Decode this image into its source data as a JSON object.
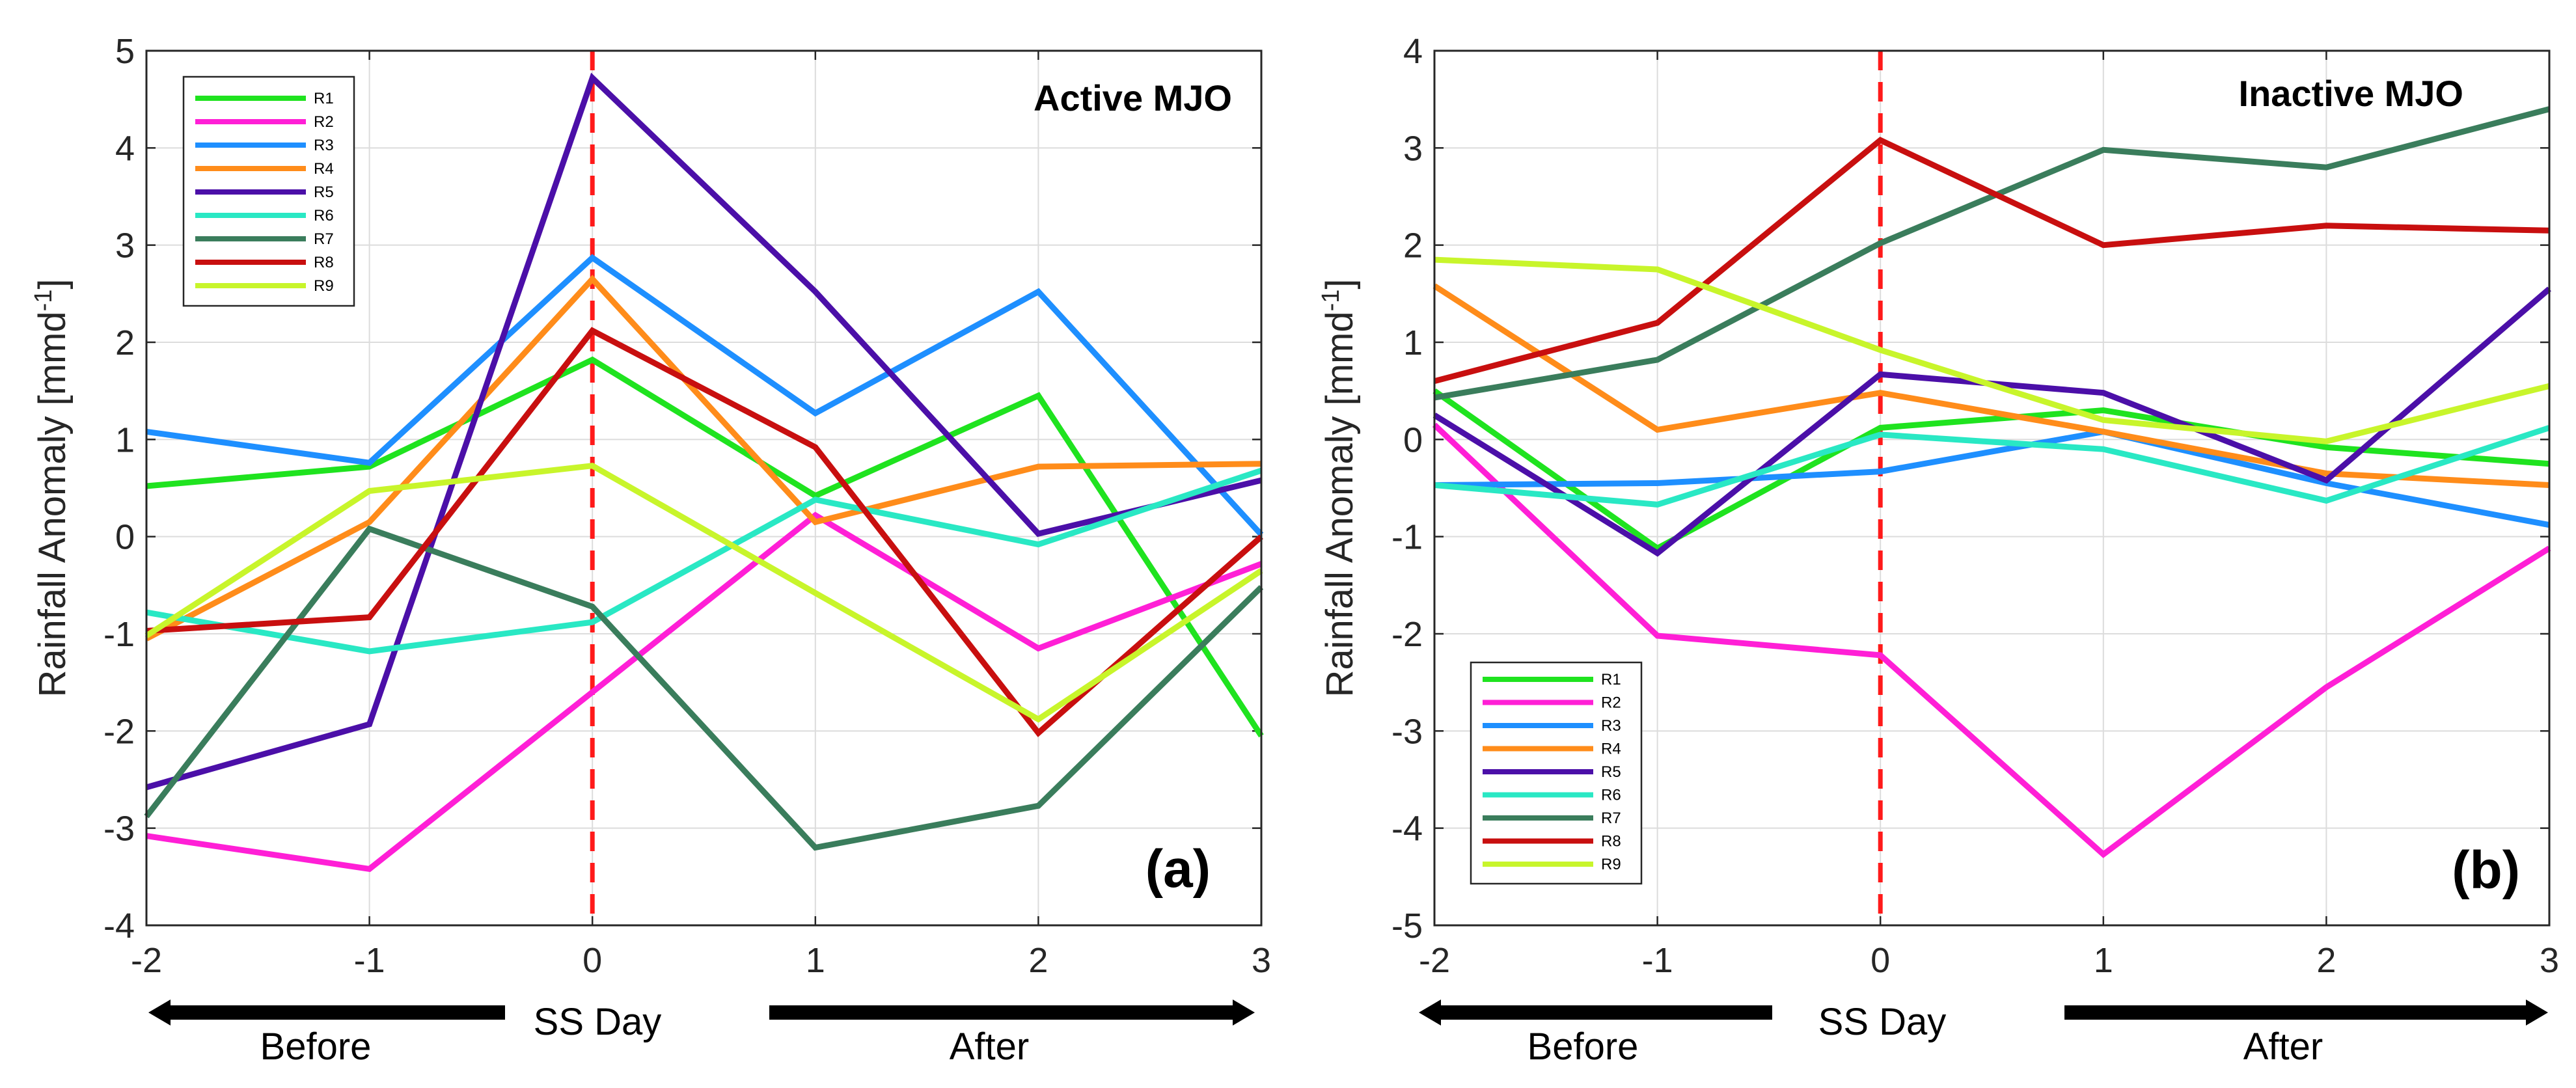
{
  "chart_data": [
    {
      "type": "line",
      "panel_label": "(a)",
      "corner_title": "Active MJO",
      "ylabel": "Rainfall Anomaly [mmd",
      "ylabel_sup": "-1",
      "ylabel_close": "]",
      "x": [
        -2,
        -1,
        0,
        1,
        2,
        3
      ],
      "xticks": [
        "-2",
        "-1",
        "0",
        "1",
        "2",
        "3"
      ],
      "xlim": [
        -2,
        3
      ],
      "ylim": [
        -4,
        5
      ],
      "yticks": [
        "-4",
        "-3",
        "-2",
        "-1",
        "0",
        "1",
        "2",
        "3",
        "4",
        "5"
      ],
      "grid": true,
      "ss_day_line": 0,
      "legend_position": "top-left",
      "series": [
        {
          "name": "R1",
          "color": "#1fe31f",
          "values": [
            0.52,
            0.72,
            1.82,
            0.42,
            1.45,
            -2.05
          ]
        },
        {
          "name": "R2",
          "color": "#ff1fd6",
          "values": [
            -3.08,
            -3.42,
            -1.6,
            0.22,
            -1.15,
            -0.28
          ]
        },
        {
          "name": "R3",
          "color": "#1e8fff",
          "values": [
            1.08,
            0.76,
            2.87,
            1.27,
            2.52,
            0.02
          ]
        },
        {
          "name": "R4",
          "color": "#ff8c1a",
          "values": [
            -1.05,
            0.15,
            2.65,
            0.15,
            0.72,
            0.75
          ]
        },
        {
          "name": "R5",
          "color": "#4b0fa8",
          "values": [
            -2.58,
            -1.93,
            4.72,
            2.52,
            0.03,
            0.58
          ]
        },
        {
          "name": "R6",
          "color": "#29e8c4",
          "values": [
            -0.78,
            -1.18,
            -0.88,
            0.38,
            -0.08,
            0.68
          ]
        },
        {
          "name": "R7",
          "color": "#3a7d5c",
          "values": [
            -2.88,
            0.08,
            -0.72,
            -3.2,
            -2.77,
            -0.52
          ]
        },
        {
          "name": "R8",
          "color": "#c80f0f",
          "values": [
            -0.97,
            -0.83,
            2.12,
            0.92,
            -2.02,
            0.0
          ]
        },
        {
          "name": "R9",
          "color": "#c8f52b",
          "values": [
            -1.02,
            0.47,
            0.73,
            -0.58,
            -1.88,
            -0.35
          ]
        }
      ]
    },
    {
      "type": "line",
      "panel_label": "(b)",
      "corner_title": "Inactive MJO",
      "ylabel": "Rainfall Anomaly [mmd",
      "ylabel_sup": "-1",
      "ylabel_close": "]",
      "x": [
        -2,
        -1,
        0,
        1,
        2,
        3
      ],
      "xticks": [
        "-2",
        "-1",
        "0",
        "1",
        "2",
        "3"
      ],
      "xlim": [
        -2,
        3
      ],
      "ylim": [
        -5,
        4
      ],
      "yticks": [
        "-5",
        "-4",
        "-3",
        "-2",
        "-1",
        "0",
        "1",
        "2",
        "3",
        "4"
      ],
      "grid": true,
      "ss_day_line": 0,
      "legend_position": "bottom-left",
      "series": [
        {
          "name": "R1",
          "color": "#1fe31f",
          "values": [
            0.5,
            -1.12,
            0.12,
            0.3,
            -0.08,
            -0.25
          ]
        },
        {
          "name": "R2",
          "color": "#ff1fd6",
          "values": [
            0.15,
            -2.02,
            -2.22,
            -4.27,
            -2.55,
            -1.12
          ]
        },
        {
          "name": "R3",
          "color": "#1e8fff",
          "values": [
            -0.47,
            -0.45,
            -0.33,
            0.08,
            -0.45,
            -0.88
          ]
        },
        {
          "name": "R4",
          "color": "#ff8c1a",
          "values": [
            1.58,
            0.1,
            0.48,
            0.08,
            -0.35,
            -0.47
          ]
        },
        {
          "name": "R5",
          "color": "#4b0fa8",
          "values": [
            0.25,
            -1.17,
            0.67,
            0.48,
            -0.42,
            1.55
          ]
        },
        {
          "name": "R6",
          "color": "#29e8c4",
          "values": [
            -0.47,
            -0.67,
            0.05,
            -0.1,
            -0.63,
            0.12
          ]
        },
        {
          "name": "R7",
          "color": "#3a7d5c",
          "values": [
            0.43,
            0.82,
            2.02,
            2.98,
            2.8,
            3.4
          ]
        },
        {
          "name": "R8",
          "color": "#c80f0f",
          "values": [
            0.6,
            1.2,
            3.08,
            2.0,
            2.2,
            2.15
          ]
        },
        {
          "name": "R9",
          "color": "#c8f52b",
          "values": [
            1.85,
            1.75,
            0.92,
            0.2,
            -0.02,
            0.55
          ]
        }
      ]
    }
  ],
  "annotations": {
    "before_label": "Before",
    "after_label": "After",
    "ss_day_label": "SS Day"
  }
}
